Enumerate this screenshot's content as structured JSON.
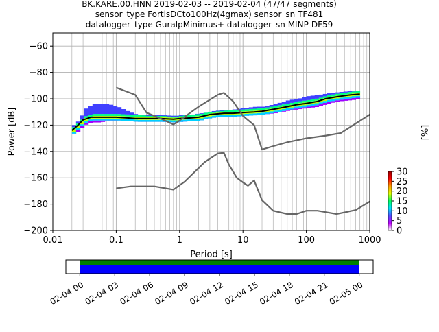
{
  "figure": {
    "title_lines": [
      "BK.KARE.00.HNN   2019-02-03 -- 2019-02-04  (47/47 segments)",
      "sensor_type FortisDCto100Hz(4gmax) sensor_sn TF481",
      "datalogger_type GuralpMinimus+ datalogger_sn MINP-DF59"
    ]
  },
  "chart_data": [
    {
      "type": "heatmap",
      "xlabel": "Period [s]",
      "ylabel": "Power [dB]",
      "xscale": "log",
      "xlim": [
        0.01,
        1000
      ],
      "ylim": [
        -200,
        -50
      ],
      "grid": true,
      "x_ticks": [
        {
          "value": 0.01,
          "label": "0.01"
        },
        {
          "value": 0.1,
          "label": "0.1"
        },
        {
          "value": 1,
          "label": "1"
        },
        {
          "value": 10,
          "label": "10"
        },
        {
          "value": 100,
          "label": "100"
        },
        {
          "value": 1000,
          "label": "1000"
        }
      ],
      "y_ticks": [
        {
          "value": -60,
          "label": "−60"
        },
        {
          "value": -80,
          "label": "−80"
        },
        {
          "value": -100,
          "label": "−100"
        },
        {
          "value": -120,
          "label": "−120"
        },
        {
          "value": -140,
          "label": "−140"
        },
        {
          "value": -160,
          "label": "−160"
        },
        {
          "value": -180,
          "label": "−180"
        },
        {
          "value": -200,
          "label": "−200"
        }
      ],
      "colorbar": {
        "label": "[%]",
        "range": [
          0,
          30
        ],
        "ticks": [
          {
            "value": 0,
            "label": "0"
          },
          {
            "value": 5,
            "label": "5"
          },
          {
            "value": 10,
            "label": "10"
          },
          {
            "value": 15,
            "label": "15"
          },
          {
            "value": 20,
            "label": "20"
          },
          {
            "value": 25,
            "label": "25"
          },
          {
            "value": 30,
            "label": "30"
          }
        ],
        "colors": [
          "#ffffff",
          "#c000ff",
          "#5050ff",
          "#00e0ff",
          "#00ff60",
          "#e0ff00",
          "#ffa000",
          "#ff0000",
          "#a00000"
        ]
      },
      "psd_mean": {
        "x": [
          0.02,
          0.025,
          0.03,
          0.04,
          0.05,
          0.07,
          0.1,
          0.15,
          0.2,
          0.3,
          0.5,
          0.8,
          1,
          1.5,
          2,
          3,
          5,
          7,
          10,
          15,
          20,
          30,
          50,
          70,
          100,
          150,
          200,
          300,
          500,
          700
        ],
        "y": [
          -124,
          -120,
          -116,
          -114,
          -114,
          -114,
          -114,
          -114.5,
          -115,
          -115,
          -115,
          -115.5,
          -115,
          -114.5,
          -114,
          -112,
          -111,
          -111,
          -110.5,
          -110,
          -109.5,
          -108,
          -106,
          -104.5,
          -103.5,
          -102,
          -100,
          -98.5,
          -97,
          -96.5
        ]
      },
      "psd_spread": {
        "x": [
          0.02,
          0.025,
          0.03,
          0.04,
          0.05,
          0.07,
          0.1,
          0.15,
          0.2,
          0.3,
          0.5,
          0.8,
          1,
          1.5,
          2,
          3,
          5,
          7,
          10,
          15,
          20,
          30,
          50,
          70,
          100,
          150,
          200,
          300,
          500,
          700
        ],
        "low": [
          -127,
          -124,
          -120,
          -118,
          -118,
          -117,
          -117,
          -117,
          -117,
          -117,
          -117,
          -117,
          -116,
          -116,
          -115,
          -114,
          -113,
          -113,
          -113,
          -112,
          -112,
          -111,
          -109,
          -108,
          -107,
          -106,
          -104,
          -102,
          -101,
          -100
        ],
        "high": [
          -120,
          -116,
          -108,
          -104,
          -104,
          -104,
          -106,
          -110,
          -112,
          -113,
          -113,
          -114,
          -113,
          -112,
          -111,
          -110,
          -109,
          -108,
          -107,
          -106,
          -106,
          -104,
          -101,
          -100,
          -98,
          -97,
          -96,
          -95,
          -94,
          -94
        ]
      },
      "noise_models": [
        {
          "x": [
            0.1,
            0.2,
            0.3,
            0.5,
            0.8,
            1,
            2,
            4,
            5,
            7,
            10,
            15,
            20,
            30,
            50,
            100,
            200,
            350,
            1000
          ],
          "y": [
            -91.5,
            -97,
            -110.5,
            -115,
            -119.5,
            -116.5,
            -106,
            -97,
            -95.5,
            -102,
            -113,
            -120,
            -138.5,
            -136,
            -133,
            -130,
            -128,
            -126,
            -112
          ]
        },
        {
          "x": [
            0.1,
            0.17,
            0.4,
            0.8,
            1.2,
            2.5,
            4,
            5,
            6,
            8,
            10,
            12,
            15,
            20,
            30,
            50,
            70,
            100,
            150,
            300,
            600,
            1000
          ],
          "y": [
            -168,
            -166.5,
            -166.5,
            -169,
            -163,
            -148,
            -141.5,
            -141,
            -150,
            -160,
            -163.5,
            -166,
            -162,
            -177,
            -185,
            -187.5,
            -187.5,
            -185,
            -185,
            -187.5,
            -184.5,
            -178
          ]
        }
      ]
    },
    {
      "type": "bar",
      "title": "",
      "x_ticks": [
        {
          "value": 0,
          "label": "02-04 00"
        },
        {
          "value": 3,
          "label": "02-04 03"
        },
        {
          "value": 6,
          "label": "02-04 06"
        },
        {
          "value": 9,
          "label": "02-04 09"
        },
        {
          "value": 12,
          "label": "02-04 12"
        },
        {
          "value": 15,
          "label": "02-04 15"
        },
        {
          "value": 18,
          "label": "02-04 18"
        },
        {
          "value": 21,
          "label": "02-04 21"
        },
        {
          "value": 24,
          "label": "02-05 00"
        }
      ],
      "xlim": [
        -1.2,
        25.2
      ],
      "series": [
        {
          "color": "#008000",
          "start": 0,
          "end": 24
        },
        {
          "color": "#0000ff",
          "start": 0,
          "end": 24
        }
      ]
    }
  ]
}
